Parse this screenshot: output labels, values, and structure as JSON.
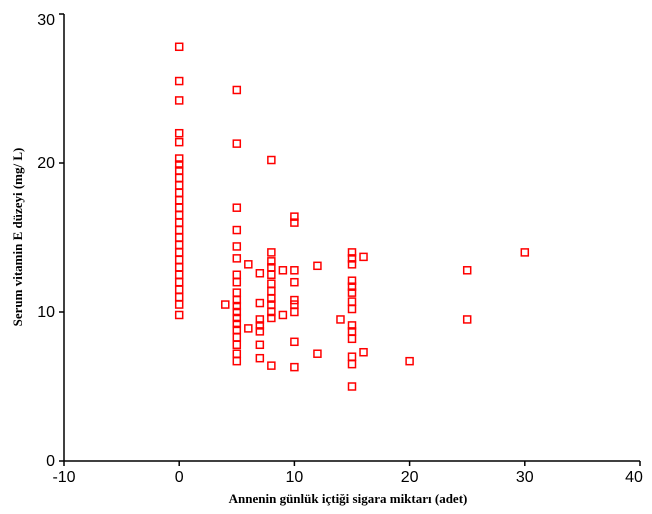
{
  "chart_data": {
    "type": "scatter",
    "title": "",
    "xlabel": "Annenin günlük içtiği sigara miktarı (adet)",
    "ylabel": "Serum vitamin E düzeyi (mg/ L)",
    "xlim": [
      -10,
      40
    ],
    "ylim": [
      0,
      30
    ],
    "xticks": [
      -10,
      0,
      10,
      20,
      30,
      40
    ],
    "yticks": [
      0,
      10,
      20,
      30
    ],
    "grid": false,
    "marker": "open-square",
    "marker_color": "#ff0000",
    "points": [
      [
        0,
        27.8
      ],
      [
        0,
        25.5
      ],
      [
        0,
        24.2
      ],
      [
        0,
        22.0
      ],
      [
        0,
        21.4
      ],
      [
        0,
        20.3
      ],
      [
        0,
        19.9
      ],
      [
        0,
        19.5
      ],
      [
        0,
        19.0
      ],
      [
        0,
        18.5
      ],
      [
        0,
        18.0
      ],
      [
        0,
        17.5
      ],
      [
        0,
        17.0
      ],
      [
        0,
        16.5
      ],
      [
        0,
        16.0
      ],
      [
        0,
        15.5
      ],
      [
        0,
        15.0
      ],
      [
        0,
        14.5
      ],
      [
        0,
        14.0
      ],
      [
        0,
        13.5
      ],
      [
        0,
        13.0
      ],
      [
        0,
        12.5
      ],
      [
        0,
        12.0
      ],
      [
        0,
        11.5
      ],
      [
        0,
        11.0
      ],
      [
        0,
        10.5
      ],
      [
        0,
        9.8
      ],
      [
        4,
        10.5
      ],
      [
        5,
        24.9
      ],
      [
        5,
        21.3
      ],
      [
        5,
        17.0
      ],
      [
        5,
        15.5
      ],
      [
        5,
        14.4
      ],
      [
        5,
        13.6
      ],
      [
        5,
        12.5
      ],
      [
        5,
        12.0
      ],
      [
        5,
        11.3
      ],
      [
        5,
        10.8
      ],
      [
        5,
        10.4
      ],
      [
        5,
        10.0
      ],
      [
        5,
        9.6
      ],
      [
        5,
        9.2
      ],
      [
        5,
        8.8
      ],
      [
        5,
        8.3
      ],
      [
        5,
        7.8
      ],
      [
        5,
        7.2
      ],
      [
        5,
        6.7
      ],
      [
        6,
        13.2
      ],
      [
        6,
        8.9
      ],
      [
        7,
        12.6
      ],
      [
        7,
        10.6
      ],
      [
        7,
        9.5
      ],
      [
        7,
        9.1
      ],
      [
        7,
        8.7
      ],
      [
        7,
        7.8
      ],
      [
        7,
        6.9
      ],
      [
        8,
        20.2
      ],
      [
        8,
        14.0
      ],
      [
        8,
        13.4
      ],
      [
        8,
        13.0
      ],
      [
        8,
        12.5
      ],
      [
        8,
        11.9
      ],
      [
        8,
        11.4
      ],
      [
        8,
        10.9
      ],
      [
        8,
        10.5
      ],
      [
        8,
        10.0
      ],
      [
        8,
        9.6
      ],
      [
        8,
        6.4
      ],
      [
        9,
        12.8
      ],
      [
        9,
        9.8
      ],
      [
        10,
        16.4
      ],
      [
        10,
        16.0
      ],
      [
        10,
        12.8
      ],
      [
        10,
        12.0
      ],
      [
        10,
        10.8
      ],
      [
        10,
        10.5
      ],
      [
        10,
        10.0
      ],
      [
        10,
        8.0
      ],
      [
        10,
        6.3
      ],
      [
        12,
        13.1
      ],
      [
        12,
        7.2
      ],
      [
        14,
        9.5
      ],
      [
        15,
        14.0
      ],
      [
        15,
        13.6
      ],
      [
        15,
        13.2
      ],
      [
        15,
        12.1
      ],
      [
        15,
        11.7
      ],
      [
        15,
        11.3
      ],
      [
        15,
        10.7
      ],
      [
        15,
        10.2
      ],
      [
        15,
        9.1
      ],
      [
        15,
        8.7
      ],
      [
        15,
        8.2
      ],
      [
        15,
        7.0
      ],
      [
        15,
        6.5
      ],
      [
        15,
        5.0
      ],
      [
        16,
        13.7
      ],
      [
        16,
        7.3
      ],
      [
        20,
        6.7
      ],
      [
        25,
        12.8
      ],
      [
        25,
        9.5
      ],
      [
        30,
        14.0
      ]
    ]
  }
}
